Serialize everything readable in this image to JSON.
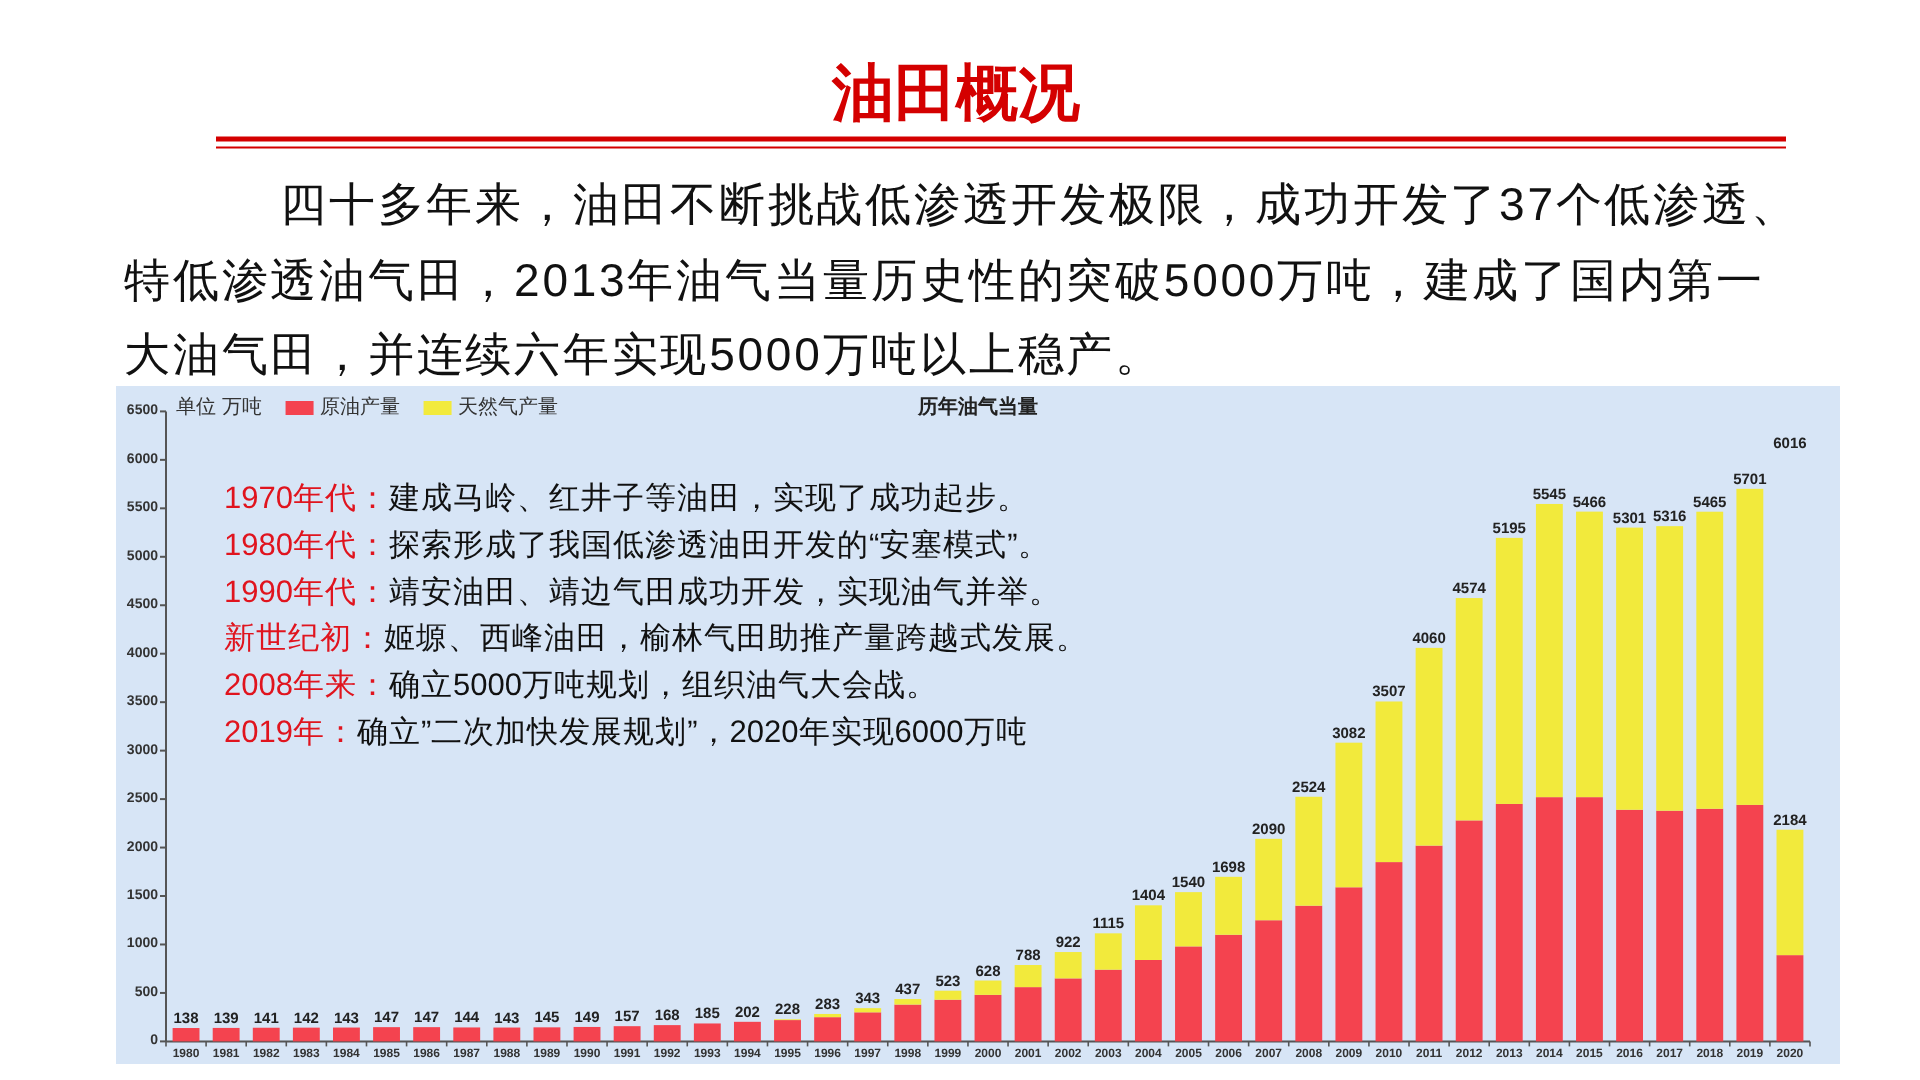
{
  "chart_data": {
    "type": "bar",
    "stacked": true,
    "title": "油田概况",
    "subtitle": "四十多年来，油田不断挑战低渗透开发极限，成功开发了37个低渗透、特低渗透油气田，2013年油气当量历史性的突破5000万吨，建成了国内第一大油气田，并连续六年实现5000万吨以上稳产。",
    "ylabel": "单位 万吨",
    "categories": [
      "1980",
      "1981",
      "1982",
      "1983",
      "1984",
      "1985",
      "1986",
      "1987",
      "1988",
      "1989",
      "1990",
      "1991",
      "1992",
      "1993",
      "1994",
      "1995",
      "1996",
      "1997",
      "1998",
      "1999",
      "2000",
      "2001",
      "2002",
      "2003",
      "2004",
      "2005",
      "2006",
      "2007",
      "2008",
      "2009",
      "2010",
      "2011",
      "2012",
      "2013",
      "2014",
      "2015",
      "2016",
      "2017",
      "2018",
      "2019",
      "2020"
    ],
    "series": [
      {
        "name": "原油产量",
        "color": "#f4434f",
        "values": [
          138,
          139,
          141,
          142,
          143,
          147,
          147,
          144,
          143,
          145,
          149,
          157,
          168,
          185,
          202,
          220,
          250,
          300,
          380,
          430,
          480,
          560,
          650,
          740,
          840,
          980,
          1100,
          1250,
          1400,
          1590,
          1850,
          2020,
          2280,
          2450,
          2520,
          2520,
          2390,
          2380,
          2400,
          2440,
          890
        ]
      },
      {
        "name": "天然气产量",
        "color": "#f2ea3c",
        "values": [
          0,
          0,
          0,
          0,
          0,
          0,
          0,
          0,
          0,
          0,
          0,
          0,
          0,
          0,
          0,
          8,
          33,
          43,
          57,
          93,
          148,
          228,
          272,
          375,
          564,
          560,
          598,
          840,
          1124,
          1492,
          1657,
          2040,
          2294,
          2745,
          3025,
          2946,
          2911,
          2936,
          3065,
          3261,
          1294
        ]
      }
    ],
    "totals": [
      "138",
      "139",
      "141",
      "142",
      "143",
      "147",
      "147",
      "144",
      "143",
      "145",
      "149",
      "157",
      "168",
      "185",
      "202",
      "228",
      "283",
      "343",
      "437",
      "523",
      "628",
      "788",
      "922",
      "1115",
      "1404",
      "1540",
      "1698",
      "2090",
      "2524",
      "3082",
      "3507",
      "4060",
      "4574",
      "5195",
      "5545",
      "5466",
      "5301",
      "5316",
      "5465",
      "5701",
      "2184"
    ],
    "ylim": [
      0,
      6500
    ],
    "yticks": [
      0,
      500,
      1000,
      1500,
      2000,
      2500,
      3000,
      3500,
      4000,
      4500,
      5000,
      5500,
      6000,
      6500
    ],
    "legend": "top left",
    "annotations": [
      "历年油气当量",
      "1970年代：建成马岭、红井子等油田，实现了成功起步。",
      "1980年代：探索形成了我国低渗透油田开发的“安塞模式”。",
      "1990年代：靖安油田、靖边气田成功开发，实现油气并举。",
      "新世纪初：姬塬、西峰油田，榆林气田助推产量跨越式发展。",
      "2008年来：确立5000万吨规划，组织油气大会战。",
      "2019年：确立”二次加快发展规划”，2020年实现6000万吨",
      "6016"
    ]
  }
}
